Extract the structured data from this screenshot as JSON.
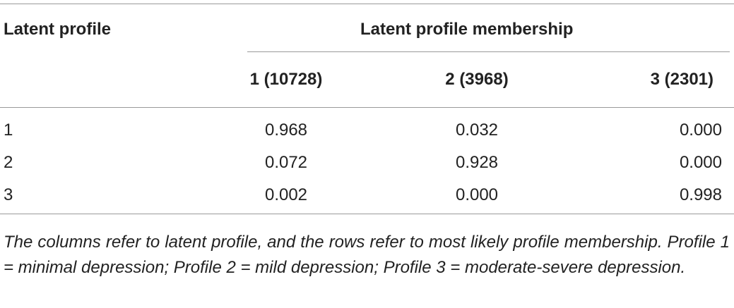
{
  "table": {
    "stub_header": "Latent profile",
    "spanner": "Latent profile membership",
    "columns": [
      "1 (10728)",
      "2 (3968)",
      "3 (2301)"
    ],
    "rows": [
      [
        "1",
        "0.968",
        "0.032",
        "0.000"
      ],
      [
        "2",
        "0.072",
        "0.928",
        "0.000"
      ],
      [
        "3",
        "0.002",
        "0.000",
        "0.998"
      ]
    ],
    "footnote": "The columns refer to latent profile, and the rows refer to most likely profile membership. Profile 1 = minimal depression; Profile 2 = mild depression; Profile 3 = moderate-severe depression."
  }
}
